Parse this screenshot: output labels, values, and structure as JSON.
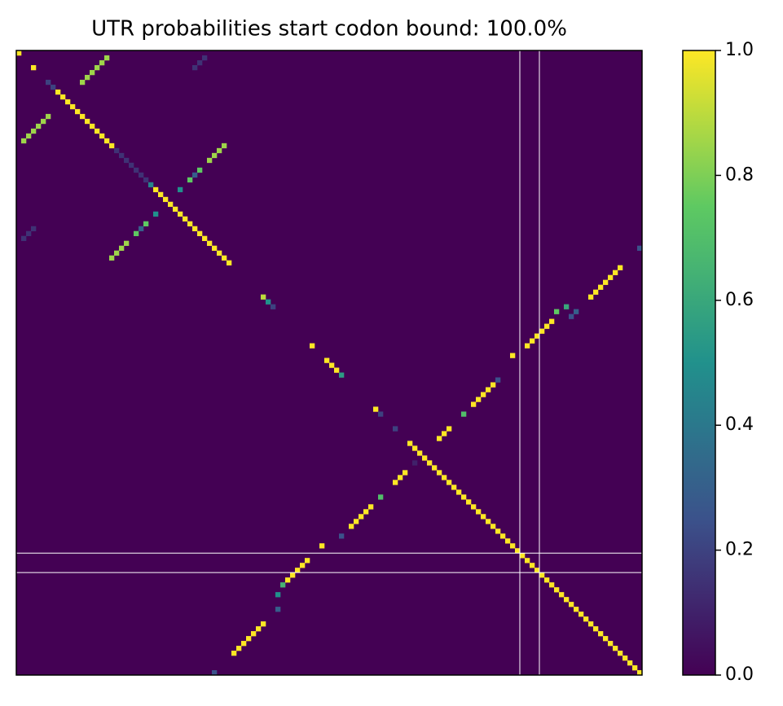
{
  "chart_data": {
    "type": "heatmap",
    "title": "UTR probabilities start codon bound: 100.0%",
    "colormap": "viridis",
    "xlim": [
      0,
      128
    ],
    "ylim": [
      128,
      0
    ],
    "zlim": [
      0,
      1
    ],
    "colorbar_ticks": [
      {
        "value": 0,
        "label": "0.0"
      },
      {
        "value": 0.2,
        "label": "0.2"
      },
      {
        "value": 0.4,
        "label": "0.4"
      },
      {
        "value": 0.6,
        "label": "0.6"
      },
      {
        "value": 0.8,
        "label": "0.8"
      },
      {
        "value": 1,
        "label": "1.0"
      }
    ],
    "vlines": [
      103,
      107
    ],
    "hlines": [
      103,
      107
    ],
    "cells": [
      [
        0,
        0,
        1
      ],
      [
        3,
        3,
        1
      ],
      [
        6,
        6,
        0.2
      ],
      [
        7,
        7,
        0.2
      ],
      [
        8,
        8,
        1
      ],
      [
        9,
        9,
        1
      ],
      [
        10,
        10,
        1
      ],
      [
        11,
        11,
        1
      ],
      [
        12,
        12,
        1
      ],
      [
        13,
        13,
        1
      ],
      [
        14,
        14,
        1
      ],
      [
        15,
        15,
        1
      ],
      [
        16,
        16,
        1
      ],
      [
        17,
        17,
        1
      ],
      [
        18,
        18,
        1
      ],
      [
        19,
        19,
        1
      ],
      [
        20,
        20,
        0.15
      ],
      [
        21,
        21,
        0.15
      ],
      [
        22,
        22,
        0.15
      ],
      [
        23,
        23,
        0.15
      ],
      [
        24,
        24,
        0.15
      ],
      [
        25,
        25,
        0.15
      ],
      [
        26,
        26,
        0.15
      ],
      [
        27,
        27,
        0.45
      ],
      [
        28,
        28,
        1
      ],
      [
        29,
        29,
        1
      ],
      [
        30,
        30,
        1
      ],
      [
        31,
        31,
        1
      ],
      [
        32,
        32,
        1
      ],
      [
        33,
        33,
        1
      ],
      [
        34,
        34,
        1
      ],
      [
        35,
        35,
        1
      ],
      [
        36,
        36,
        1
      ],
      [
        37,
        37,
        1
      ],
      [
        38,
        38,
        1
      ],
      [
        39,
        39,
        1
      ],
      [
        40,
        40,
        1
      ],
      [
        41,
        41,
        1
      ],
      [
        42,
        42,
        1
      ],
      [
        43,
        43,
        1
      ],
      [
        6,
        13,
        0.85
      ],
      [
        5,
        14,
        0.85
      ],
      [
        4,
        15,
        0.85
      ],
      [
        3,
        16,
        0.85
      ],
      [
        2,
        17,
        0.85
      ],
      [
        1,
        18,
        0.85
      ],
      [
        13,
        6,
        0.85
      ],
      [
        14,
        5,
        0.85
      ],
      [
        15,
        4,
        0.85
      ],
      [
        16,
        3,
        0.85
      ],
      [
        17,
        2,
        0.85
      ],
      [
        18,
        1,
        0.85
      ],
      [
        19,
        42,
        0.85
      ],
      [
        20,
        41,
        0.85
      ],
      [
        21,
        40,
        0.85
      ],
      [
        22,
        39,
        0.85
      ],
      [
        24,
        37,
        0.75
      ],
      [
        25,
        36,
        0.3
      ],
      [
        26,
        35,
        0.75
      ],
      [
        28,
        33,
        0.5
      ],
      [
        42,
        19,
        0.85
      ],
      [
        41,
        20,
        0.85
      ],
      [
        40,
        21,
        0.85
      ],
      [
        39,
        22,
        0.85
      ],
      [
        37,
        24,
        0.75
      ],
      [
        36,
        25,
        0.3
      ],
      [
        35,
        26,
        0.75
      ],
      [
        33,
        28,
        0.5
      ],
      [
        1,
        38,
        0.15
      ],
      [
        2,
        37,
        0.15
      ],
      [
        3,
        36,
        0.15
      ],
      [
        38,
        1,
        0.15
      ],
      [
        37,
        2,
        0.15
      ],
      [
        36,
        3,
        0.15
      ],
      [
        50,
        50,
        0.9
      ],
      [
        51,
        51,
        0.5
      ],
      [
        52,
        52,
        0.2
      ],
      [
        60,
        60,
        1
      ],
      [
        63,
        63,
        1
      ],
      [
        64,
        64,
        1
      ],
      [
        65,
        65,
        1
      ],
      [
        66,
        66,
        0.55
      ],
      [
        73,
        73,
        1
      ],
      [
        74,
        74,
        0.2
      ],
      [
        77,
        77,
        0.2
      ],
      [
        80,
        80,
        1
      ],
      [
        81,
        81,
        1
      ],
      [
        82,
        82,
        1
      ],
      [
        83,
        83,
        1
      ],
      [
        84,
        84,
        1
      ],
      [
        85,
        85,
        1
      ],
      [
        86,
        86,
        1
      ],
      [
        87,
        87,
        1
      ],
      [
        88,
        88,
        1
      ],
      [
        89,
        89,
        1
      ],
      [
        90,
        90,
        1
      ],
      [
        91,
        91,
        1
      ],
      [
        92,
        92,
        1
      ],
      [
        93,
        93,
        1
      ],
      [
        94,
        94,
        1
      ],
      [
        95,
        95,
        1
      ],
      [
        96,
        96,
        1
      ],
      [
        97,
        97,
        1
      ],
      [
        98,
        98,
        1
      ],
      [
        99,
        99,
        1
      ],
      [
        100,
        100,
        1
      ],
      [
        101,
        101,
        1
      ],
      [
        102,
        102,
        1
      ],
      [
        103,
        103,
        1
      ],
      [
        104,
        104,
        1
      ],
      [
        105,
        105,
        1
      ],
      [
        106,
        106,
        1
      ],
      [
        107,
        107,
        1
      ],
      [
        108,
        108,
        1
      ],
      [
        109,
        109,
        1
      ],
      [
        110,
        110,
        1
      ],
      [
        111,
        111,
        1
      ],
      [
        112,
        112,
        1
      ],
      [
        113,
        113,
        1
      ],
      [
        114,
        114,
        1
      ],
      [
        115,
        115,
        1
      ],
      [
        116,
        116,
        1
      ],
      [
        117,
        117,
        1
      ],
      [
        118,
        118,
        1
      ],
      [
        119,
        119,
        1
      ],
      [
        120,
        120,
        1
      ],
      [
        121,
        121,
        1
      ],
      [
        122,
        122,
        1
      ],
      [
        123,
        123,
        1
      ],
      [
        124,
        124,
        1
      ],
      [
        125,
        125,
        1
      ],
      [
        126,
        126,
        1
      ],
      [
        127,
        127,
        1
      ],
      [
        123,
        44,
        1
      ],
      [
        122,
        45,
        1
      ],
      [
        121,
        46,
        1
      ],
      [
        120,
        47,
        1
      ],
      [
        119,
        48,
        1
      ],
      [
        118,
        49,
        1
      ],
      [
        117,
        50,
        1
      ],
      [
        114,
        53,
        0.3
      ],
      [
        111,
        53,
        0.5
      ],
      [
        109,
        54,
        0.65
      ],
      [
        108,
        55,
        1
      ],
      [
        107,
        56,
        1
      ],
      [
        106,
        57,
        1
      ],
      [
        105,
        58,
        1
      ],
      [
        104,
        59,
        1
      ],
      [
        101,
        62,
        1
      ],
      [
        99,
        66,
        0.25
      ],
      [
        97,
        68,
        1
      ],
      [
        96,
        69,
        1
      ],
      [
        95,
        70,
        1
      ],
      [
        94,
        71,
        1
      ],
      [
        93,
        72,
        1
      ],
      [
        91,
        74,
        0.7
      ],
      [
        88,
        77,
        1
      ],
      [
        87,
        78,
        1
      ],
      [
        86,
        79,
        1
      ],
      [
        84,
        81,
        0.1
      ],
      [
        79,
        86,
        1
      ],
      [
        78,
        87,
        1
      ],
      [
        77,
        88,
        1
      ],
      [
        74,
        91,
        0.7
      ],
      [
        72,
        93,
        1
      ],
      [
        71,
        94,
        1
      ],
      [
        70,
        95,
        1
      ],
      [
        69,
        96,
        1
      ],
      [
        68,
        97,
        1
      ],
      [
        67,
        98,
        0.25
      ],
      [
        62,
        101,
        1
      ],
      [
        60,
        104,
        1
      ],
      [
        59,
        105,
        1
      ],
      [
        58,
        106,
        1
      ],
      [
        57,
        107,
        1
      ],
      [
        56,
        108,
        1
      ],
      [
        55,
        109,
        1
      ],
      [
        53,
        110,
        0.75
      ],
      [
        52,
        112,
        0.6
      ],
      [
        53,
        114,
        0.3
      ],
      [
        54,
        113,
        0.25
      ],
      [
        50,
        117,
        1
      ],
      [
        49,
        118,
        1
      ],
      [
        48,
        119,
        1
      ],
      [
        47,
        120,
        1
      ],
      [
        46,
        121,
        1
      ],
      [
        45,
        122,
        1
      ],
      [
        44,
        123,
        1
      ],
      [
        40,
        127,
        0.25
      ],
      [
        127,
        40,
        0.25
      ]
    ]
  }
}
